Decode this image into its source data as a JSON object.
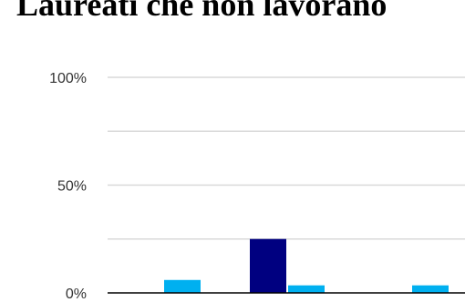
{
  "chart_data": {
    "type": "bar",
    "title": "Laureati che non lavorano",
    "xlabel": "",
    "ylabel": "",
    "categories": [
      "",
      "",
      ""
    ],
    "series": [
      {
        "color": "#000080",
        "values": [
          0,
          25,
          0
        ]
      },
      {
        "color": "#00b0f0",
        "values": [
          6,
          3.5,
          3.5
        ]
      }
    ],
    "ylim": [
      0,
      100
    ],
    "yticks": [
      {
        "value": 0,
        "label": "0%"
      },
      {
        "value": 50,
        "label": "50%"
      },
      {
        "value": 100,
        "label": "100%"
      }
    ],
    "gridlines": [
      25,
      50,
      75,
      100
    ],
    "grid": true,
    "legend": "none"
  }
}
